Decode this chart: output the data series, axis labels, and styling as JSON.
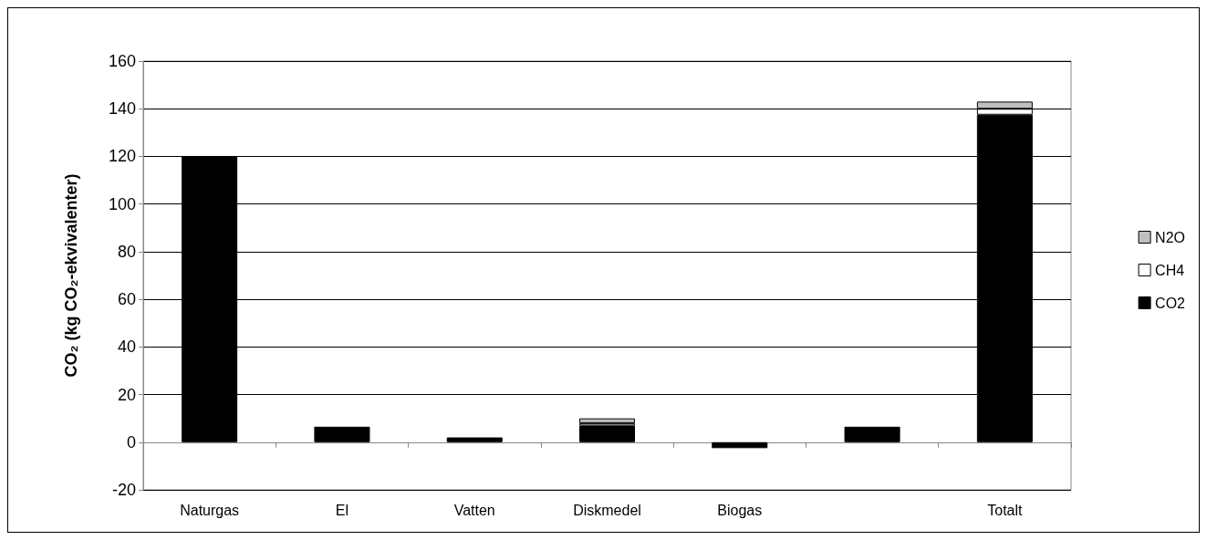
{
  "chart_data": {
    "type": "bar",
    "stacked": true,
    "ylabel": "CO₂ (kg CO₂-ekvivalenter)",
    "categories": [
      "Naturgas",
      "El",
      "Vatten",
      "Diskmedel",
      "Biogas",
      null,
      "Totalt"
    ],
    "series": [
      {
        "name": "CO2",
        "color": "#000000",
        "values": [
          120,
          6.5,
          2,
          7,
          -2.5,
          6.5,
          137.5
        ]
      },
      {
        "name": "CH4",
        "color": "#ffffff",
        "values": [
          0,
          0,
          0,
          1,
          0,
          0,
          2.5
        ]
      },
      {
        "name": "N2O",
        "color": "#c0c0c0",
        "values": [
          0,
          0,
          0,
          2,
          0,
          0,
          3
        ]
      }
    ],
    "ylim": [
      -20,
      160
    ],
    "yticks": [
      -20,
      0,
      20,
      40,
      60,
      80,
      100,
      120,
      140,
      160
    ],
    "grid": "y",
    "legend": "right"
  }
}
